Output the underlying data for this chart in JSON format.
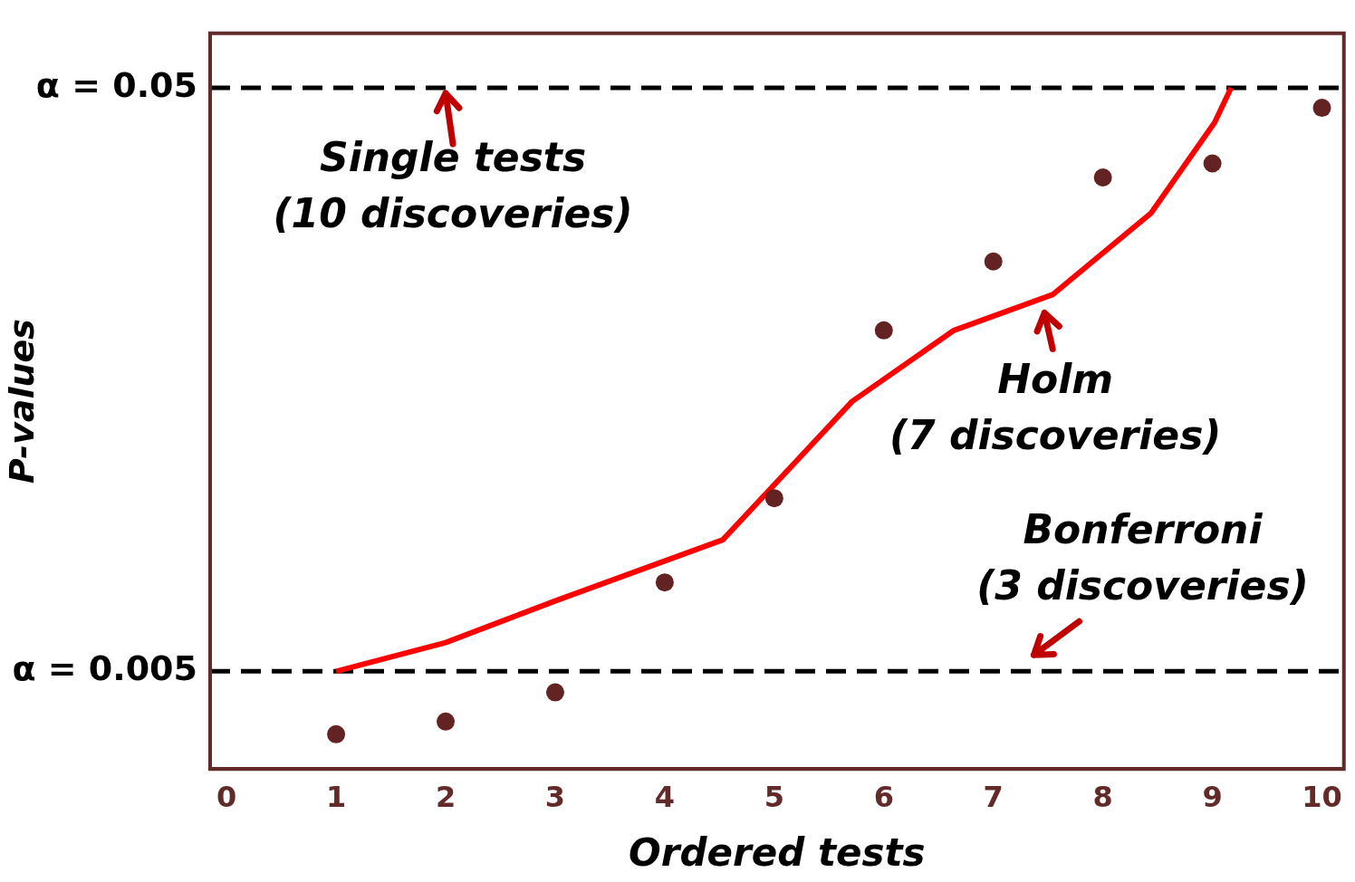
{
  "chart_data": {
    "type": "scatter",
    "xlabel": "Ordered tests",
    "ylabel": "P-values",
    "log": "y",
    "xlim": [
      -0.15,
      10.2
    ],
    "xticks": [
      0,
      1,
      2,
      3,
      4,
      5,
      6,
      7,
      8,
      9,
      10
    ],
    "ylim": [
      0.0034,
      0.062
    ],
    "yticks": [
      {
        "value": 0.005,
        "label": "α = 0.005"
      },
      {
        "value": 0.05,
        "label": "α = 0.05"
      }
    ],
    "grid": false,
    "legend": false,
    "series": [
      {
        "color": "#632323",
        "marker": "circle",
        "x": [
          1,
          2,
          3,
          4,
          5,
          6,
          7,
          8,
          9,
          10
        ],
        "values": [
          0.0039,
          0.0041,
          0.0046,
          0.0071,
          0.0099,
          0.0192,
          0.0252,
          0.0351,
          0.0371,
          0.0462
        ]
      },
      {
        "type": "line",
        "color": "#ff0000",
        "marker": "none",
        "line_style": "solid",
        "x": [
          1,
          2,
          3,
          4.53,
          5.71,
          6.64,
          7.54,
          8.44,
          9.02,
          9.17
        ],
        "values": [
          0.005,
          0.0056,
          0.0066,
          0.0084,
          0.0145,
          0.0192,
          0.0221,
          0.0305,
          0.0436,
          0.05
        ]
      }
    ],
    "ref_lines": [
      {
        "axis": "y",
        "value": 0.05,
        "color": "#000000",
        "line_style": "dashed"
      },
      {
        "axis": "y",
        "value": 0.005,
        "color": "#000000",
        "line_style": "dashed"
      }
    ],
    "annotations": [
      {
        "text": "Single tests\n(10 discoveries)",
        "x": 2,
        "y": 0.05
      },
      {
        "text": "Holm\n(7 discoveries)",
        "x": 7.5,
        "y": 0.0221
      },
      {
        "text": "Bonferroni\n(3 discoveries)",
        "x": 7.37,
        "y": 0.005
      }
    ]
  }
}
